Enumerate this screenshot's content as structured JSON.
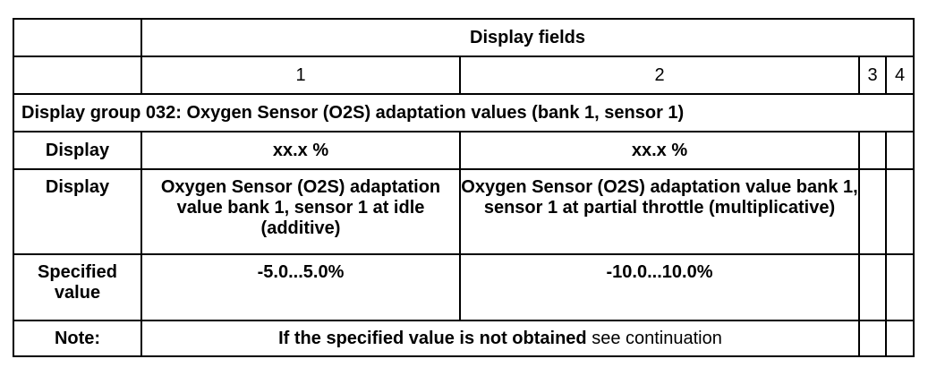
{
  "header": {
    "display_fields_label": "Display fields",
    "field_numbers": [
      "1",
      "2",
      "3",
      "4"
    ]
  },
  "group": {
    "title": "Display group 032: Oxygen Sensor (O2S) adaptation values (bank 1, sensor 1)"
  },
  "rows": {
    "display_units": {
      "label": "Display",
      "field1": "xx.x %",
      "field2": "xx.x %"
    },
    "display_desc": {
      "label": "Display",
      "field1": "Oxygen Sensor (O2S) adaptation value bank 1, sensor 1 at idle (additive)",
      "field2": "Oxygen Sensor (O2S) adaptation value bank 1, sensor 1 at partial throttle (multiplicative)"
    },
    "specified": {
      "label": "Specified value",
      "field1": "-5.0...5.0%",
      "field2": "-10.0...10.0%"
    },
    "note": {
      "label": "Note:",
      "text_bold": "If the specified value is not obtained",
      "text_normal": "see continuation"
    }
  }
}
